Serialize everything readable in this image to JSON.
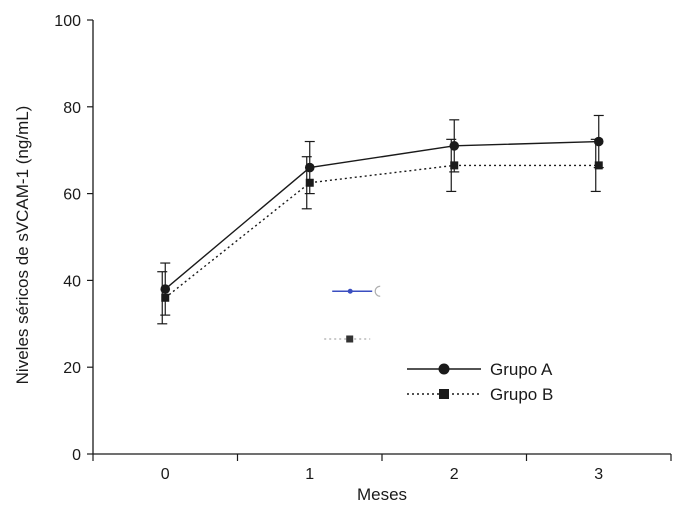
{
  "chart_data": {
    "type": "line",
    "xlabel": "Meses",
    "ylabel": "Niveles séricos de sVCAM-1 (ng/mL)",
    "categories": [
      "0",
      "1",
      "2",
      "3"
    ],
    "x": [
      0,
      1,
      2,
      3
    ],
    "xlim": [
      -0.5,
      3.5
    ],
    "ylim": [
      0,
      100
    ],
    "yticks": [
      0,
      20,
      40,
      60,
      80,
      100
    ],
    "grid": false,
    "legend_position": "lower-right",
    "series": [
      {
        "name": "Grupo A",
        "marker": "circle",
        "line_style": "solid",
        "color": "#1a1a1a",
        "values": [
          38,
          66,
          71,
          72
        ],
        "error": [
          6,
          6,
          6,
          6
        ]
      },
      {
        "name": "Grupo B",
        "marker": "square",
        "line_style": "dotted",
        "color": "#1a1a1a",
        "values": [
          36,
          62.5,
          66.5,
          66.5
        ],
        "error": [
          6,
          6,
          6,
          6
        ]
      }
    ],
    "stray_marks": [
      {
        "kind": "line-circle",
        "color": "#3a4ec0",
        "x": 1.28,
        "y": 37.5
      },
      {
        "kind": "dotted-square",
        "color": "#333333",
        "x": 1.28,
        "y": 26.5
      }
    ]
  }
}
